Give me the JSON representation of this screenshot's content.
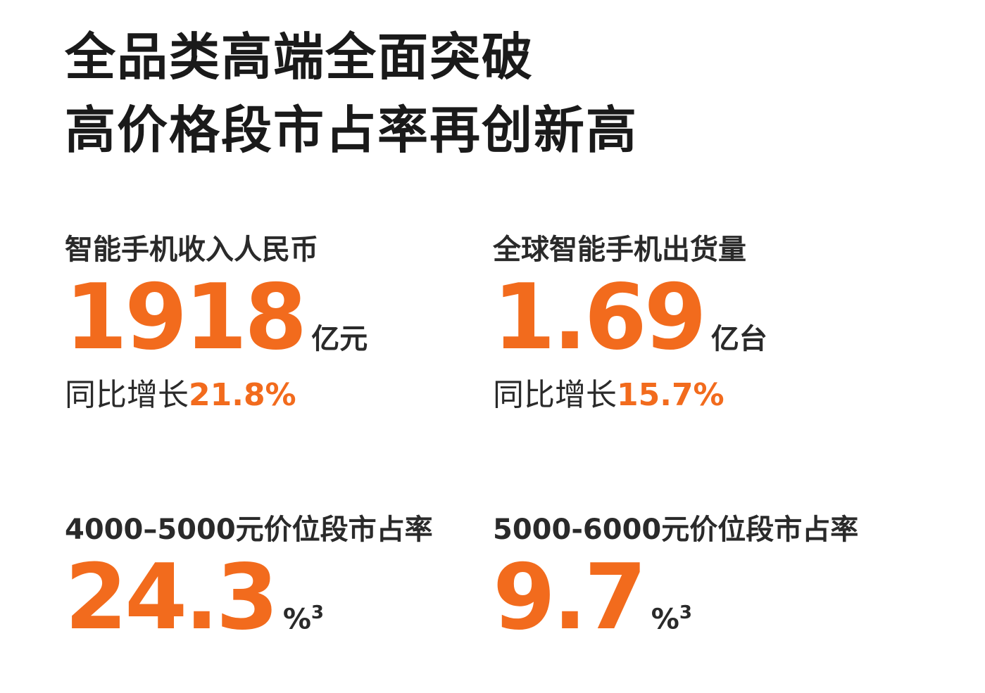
{
  "title": {
    "line1": "全品类高端全面突破",
    "line2": "高价格段市占率再创新高"
  },
  "stats": [
    {
      "label": "智能手机收入人民币",
      "value": "1918",
      "unit": "亿元",
      "growth_label": "同比增长",
      "growth": "21.8%"
    },
    {
      "label": "全球智能手机出货量",
      "value": "1.69",
      "unit": "亿台",
      "growth_label": "同比增长",
      "growth": "15.7%"
    },
    {
      "label": "4000–5000元价位段市占率",
      "value": "24.3",
      "unit": "%",
      "note": "3"
    },
    {
      "label": "5000-6000元价位段市占率",
      "value": "9.7",
      "unit": "%",
      "note": "3"
    }
  ]
}
